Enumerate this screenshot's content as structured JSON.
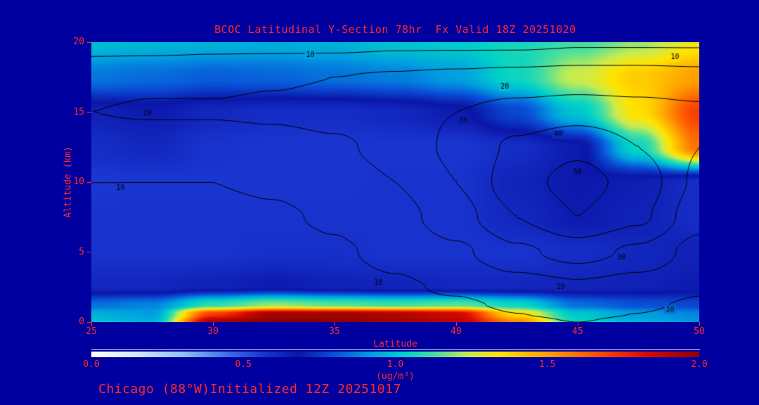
{
  "title": "BCOC Latitudinal Y-Section 78hr  Fx Valid 18Z 20251020",
  "footer": "Chicago (88°W)Initialized 12Z 20251017",
  "colors": {
    "background": "#0000a0",
    "label_text": "#ff2a2a",
    "contour_line": "#000000"
  },
  "axes": {
    "x": {
      "label": "Latitude",
      "min": 25,
      "max": 50,
      "ticks": [
        25,
        30,
        35,
        40,
        45,
        50
      ]
    },
    "y": {
      "label": "Altitude (km)",
      "min": 0,
      "max": 20,
      "ticks": [
        0,
        5,
        10,
        15,
        20
      ]
    }
  },
  "colorbar": {
    "min": 0.0,
    "max": 2.0,
    "tick_labels": [
      "0.0",
      "0.5",
      "1.0",
      "1.5",
      "2.0"
    ],
    "units": "(ug/m³)"
  },
  "chart_data": {
    "type": "heatmap",
    "title": "BCOC Latitudinal Y-Section 78hr  Fx Valid 18Z 20251020",
    "xlabel": "Latitude",
    "ylabel": "Altitude (km)",
    "xlim": [
      25,
      50
    ],
    "ylim": [
      0,
      20
    ],
    "fill_units": "ug/m3",
    "fill_range": [
      0,
      2
    ],
    "x_lats": [
      25,
      27.5,
      30,
      32.5,
      35,
      37.5,
      40,
      42.5,
      45,
      47.5,
      50
    ],
    "y_alts": [
      0,
      0.6,
      1.2,
      2.5,
      5,
      7.5,
      10,
      12.5,
      15,
      17.5,
      20
    ],
    "fill_values": [
      [
        1.0,
        0.95,
        1.95,
        2.0,
        2.0,
        1.95,
        1.9,
        1.55,
        1.05,
        0.95,
        0.9
      ],
      [
        0.95,
        0.92,
        1.7,
        1.95,
        1.95,
        1.92,
        1.85,
        1.35,
        1.0,
        0.92,
        0.88
      ],
      [
        0.85,
        0.88,
        1.1,
        1.2,
        1.15,
        1.12,
        1.15,
        1.05,
        0.85,
        0.8,
        0.78
      ],
      [
        0.62,
        0.62,
        0.64,
        0.66,
        0.64,
        0.63,
        0.62,
        0.62,
        0.63,
        0.64,
        0.66
      ],
      [
        0.58,
        0.58,
        0.58,
        0.59,
        0.59,
        0.58,
        0.58,
        0.58,
        0.6,
        0.62,
        0.64
      ],
      [
        0.58,
        0.58,
        0.58,
        0.58,
        0.58,
        0.58,
        0.58,
        0.62,
        0.66,
        0.64,
        0.6
      ],
      [
        0.56,
        0.57,
        0.57,
        0.57,
        0.57,
        0.58,
        0.58,
        0.63,
        0.67,
        0.65,
        0.6
      ],
      [
        0.6,
        0.62,
        0.58,
        0.57,
        0.57,
        0.57,
        0.57,
        0.6,
        0.66,
        1.05,
        1.6
      ],
      [
        0.64,
        0.66,
        0.62,
        0.6,
        0.6,
        0.62,
        0.66,
        0.78,
        1.0,
        1.35,
        1.7
      ],
      [
        0.86,
        0.84,
        0.82,
        0.83,
        0.85,
        0.87,
        0.92,
        1.05,
        1.25,
        1.4,
        1.5
      ],
      [
        0.98,
        0.97,
        0.96,
        0.95,
        0.96,
        1.0,
        1.02,
        1.06,
        1.12,
        1.2,
        1.32
      ]
    ],
    "contour_levels": [
      10,
      20,
      30,
      40,
      50
    ],
    "contour_values": [
      [
        3,
        3,
        4,
        5,
        6,
        7,
        8,
        9,
        10,
        9,
        7
      ],
      [
        3,
        3,
        4,
        5,
        6,
        7,
        8,
        10,
        11,
        10,
        8
      ],
      [
        3,
        4,
        4,
        5,
        6,
        8,
        9,
        11,
        13,
        11,
        9
      ],
      [
        4,
        4,
        5,
        6,
        7,
        9,
        11,
        15,
        18,
        15,
        11
      ],
      [
        5,
        5,
        6,
        7,
        9,
        12,
        18,
        28,
        34,
        28,
        16
      ],
      [
        8,
        8,
        8,
        9,
        11,
        16,
        26,
        40,
        50,
        42,
        24
      ],
      [
        10,
        10,
        10,
        11,
        14,
        20,
        30,
        46,
        54,
        46,
        28
      ],
      [
        14,
        13,
        13,
        15,
        18,
        24,
        32,
        42,
        48,
        40,
        30
      ],
      [
        20,
        21,
        21,
        22,
        24,
        27,
        30,
        34,
        36,
        34,
        32
      ],
      [
        17,
        18,
        18,
        19,
        20,
        21,
        22,
        23,
        24,
        24,
        23
      ],
      [
        6,
        6,
        7,
        7,
        7,
        8,
        8,
        8,
        9,
        9,
        9
      ]
    ],
    "contour_labels": [
      {
        "lat": 34.0,
        "alt": 19.1,
        "text": "10"
      },
      {
        "lat": 49.0,
        "alt": 18.9,
        "text": "10"
      },
      {
        "lat": 42.0,
        "alt": 16.8,
        "text": "20"
      },
      {
        "lat": 27.3,
        "alt": 14.9,
        "text": "20"
      },
      {
        "lat": 40.3,
        "alt": 14.4,
        "text": "30"
      },
      {
        "lat": 44.2,
        "alt": 13.4,
        "text": "40"
      },
      {
        "lat": 45.0,
        "alt": 10.7,
        "text": "50"
      },
      {
        "lat": 26.2,
        "alt": 9.6,
        "text": "10"
      },
      {
        "lat": 36.8,
        "alt": 2.8,
        "text": "10"
      },
      {
        "lat": 44.3,
        "alt": 2.5,
        "text": "20"
      },
      {
        "lat": 46.8,
        "alt": 4.6,
        "text": "30"
      },
      {
        "lat": 48.8,
        "alt": 0.9,
        "text": "10"
      }
    ],
    "colormap": [
      {
        "v": 0.0,
        "c": "#ffffff"
      },
      {
        "v": 0.15,
        "c": "#d2e8fc"
      },
      {
        "v": 0.3,
        "c": "#8fc2f6"
      },
      {
        "v": 0.45,
        "c": "#3c6ee8"
      },
      {
        "v": 0.56,
        "c": "#1b38d4"
      },
      {
        "v": 0.68,
        "c": "#0a16a8"
      },
      {
        "v": 0.8,
        "c": "#0a50d8"
      },
      {
        "v": 0.92,
        "c": "#00a0e0"
      },
      {
        "v": 1.03,
        "c": "#00d2c8"
      },
      {
        "v": 1.14,
        "c": "#50e09a"
      },
      {
        "v": 1.24,
        "c": "#c8ec50"
      },
      {
        "v": 1.34,
        "c": "#ffe400"
      },
      {
        "v": 1.5,
        "c": "#ffa000"
      },
      {
        "v": 1.66,
        "c": "#ff5000"
      },
      {
        "v": 1.82,
        "c": "#dc0a00"
      },
      {
        "v": 2.0,
        "c": "#8c0000"
      }
    ]
  }
}
